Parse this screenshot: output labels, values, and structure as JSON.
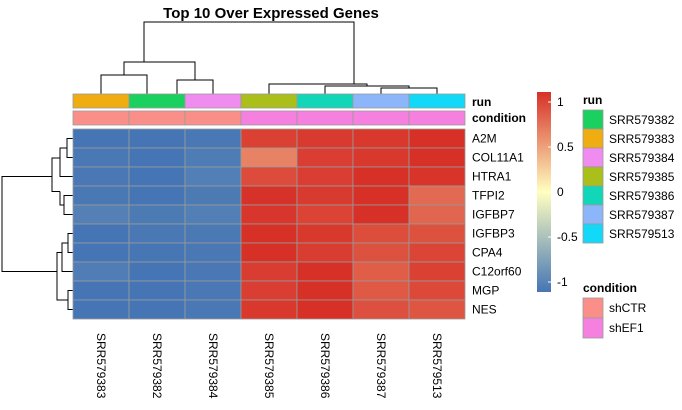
{
  "chart_data": {
    "type": "heatmap",
    "title": "Top 10 Over Expressed Genes",
    "columns": [
      "SRR579383",
      "SRR579382",
      "SRR579384",
      "SRR579385",
      "SRR579386",
      "SRR579387",
      "SRR579513"
    ],
    "rows": [
      "A2M",
      "COL11A1",
      "HTRA1",
      "TFPI2",
      "IGFBP7",
      "IGFBP3",
      "CPA4",
      "C12orf60",
      "MGP",
      "NES"
    ],
    "values": [
      [
        -1.0,
        -1.0,
        -0.98,
        0.92,
        0.95,
        0.96,
        1.0
      ],
      [
        -0.98,
        -1.0,
        -0.95,
        0.6,
        0.93,
        0.96,
        1.0
      ],
      [
        -0.98,
        -1.0,
        -0.93,
        0.87,
        0.93,
        1.0,
        0.98
      ],
      [
        -0.98,
        -1.0,
        -0.96,
        0.99,
        0.95,
        1.0,
        0.72
      ],
      [
        -0.92,
        -0.96,
        -0.93,
        0.97,
        0.91,
        1.0,
        0.74
      ],
      [
        -1.0,
        -0.98,
        -0.97,
        1.0,
        0.96,
        0.86,
        0.84
      ],
      [
        -1.0,
        -0.99,
        -0.98,
        1.0,
        0.94,
        0.84,
        0.9
      ],
      [
        -0.94,
        -1.0,
        -0.98,
        0.94,
        1.0,
        0.78,
        0.92
      ],
      [
        -1.0,
        -1.0,
        -0.98,
        0.93,
        1.0,
        0.8,
        0.88
      ],
      [
        -1.0,
        -1.0,
        -0.98,
        0.96,
        1.0,
        0.85,
        0.82
      ]
    ],
    "color_scale": {
      "min": -1,
      "max": 1,
      "ticks": [
        1,
        0.5,
        0,
        -0.5,
        -1
      ],
      "tick_labels": [
        "1",
        "0.5",
        "0",
        "-0.5",
        "-1"
      ],
      "stops": [
        "#4575B4",
        "#FFFFBF",
        "#D73027"
      ]
    },
    "annotations": {
      "run": {
        "label": "run",
        "legend_title": "run",
        "values": [
          "SRR579383",
          "SRR579382",
          "SRR579384",
          "SRR579385",
          "SRR579386",
          "SRR579387",
          "SRR579513"
        ],
        "legend": [
          {
            "name": "SRR579382",
            "color": "#1AD15F"
          },
          {
            "name": "SRR579383",
            "color": "#F0AD12"
          },
          {
            "name": "SRR579384",
            "color": "#F08CF0"
          },
          {
            "name": "SRR579385",
            "color": "#AABF1A"
          },
          {
            "name": "SRR579386",
            "color": "#12D6B8"
          },
          {
            "name": "SRR579387",
            "color": "#8CB5FA"
          },
          {
            "name": "SRR579513",
            "color": "#12D9F8"
          }
        ]
      },
      "condition": {
        "label": "condition",
        "legend_title": "condition",
        "values": [
          "shCTR",
          "shCTR",
          "shCTR",
          "shEF1",
          "shEF1",
          "shEF1",
          "shEF1"
        ],
        "legend": [
          {
            "name": "shCTR",
            "color": "#FA8F8A"
          },
          {
            "name": "shEF1",
            "color": "#F580E0"
          }
        ]
      }
    },
    "column_dendrogram": true,
    "row_dendrogram": true
  }
}
